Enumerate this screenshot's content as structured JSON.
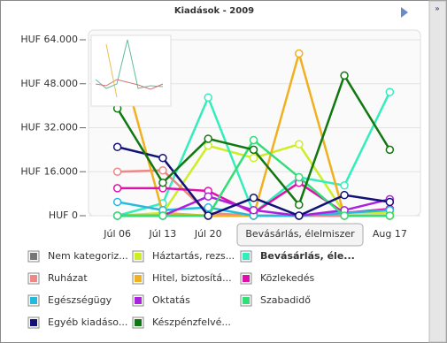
{
  "chart_data": {
    "type": "line",
    "title": "Kiadások - 2009",
    "categories": [
      "Júl 06",
      "Júl 13",
      "Júl 20",
      null,
      null,
      null,
      "Aug 17"
    ],
    "ylim": [
      0,
      64000
    ],
    "yticks": [
      {
        "value": 0,
        "label": "HUF 0"
      },
      {
        "value": 16000,
        "label": "HUF 16.000"
      },
      {
        "value": 32000,
        "label": "HUF 32.000"
      },
      {
        "value": 48000,
        "label": "HUF 48.000"
      },
      {
        "value": 64000,
        "label": "HUF 64.000"
      }
    ],
    "grid": true,
    "tooltip": "Bevásárlás, élelmiszer",
    "series": [
      {
        "name": "Nem kategoriz...",
        "color": "#777777",
        "values": [
          0,
          0,
          0,
          0,
          0,
          0,
          0
        ]
      },
      {
        "name": "Háztartás, rezs...",
        "color": "#ccee22",
        "values": [
          0,
          1000,
          25500,
          21000,
          26000,
          1000,
          1000
        ]
      },
      {
        "name": "Bevásárlás, éle...",
        "color": "#33eebb",
        "values": [
          0,
          4500,
          43000,
          1000,
          14000,
          11000,
          45000
        ]
      },
      {
        "name": "Ruházat",
        "color": "#ee8888",
        "values": [
          16000,
          16500,
          1000,
          0,
          0,
          0,
          0
        ]
      },
      {
        "name": "Hitel, biztosítá...",
        "color": "#f0b020",
        "values": [
          61000,
          1000,
          0,
          0,
          59000,
          0,
          0
        ]
      },
      {
        "name": "Közlekedés",
        "color": "#dd11aa",
        "values": [
          10000,
          10000,
          9000,
          1000,
          12000,
          1000,
          2500
        ]
      },
      {
        "name": "Egészségügy",
        "color": "#22bbdd",
        "values": [
          5000,
          2000,
          3000,
          0,
          0,
          1000,
          2000
        ]
      },
      {
        "name": "Oktatás",
        "color": "#aa22dd",
        "values": [
          0,
          0,
          7000,
          2000,
          0,
          2000,
          6000
        ]
      },
      {
        "name": "Szabadidő",
        "color": "#33dd77",
        "values": [
          0,
          0,
          0,
          27500,
          14000,
          0,
          0
        ]
      },
      {
        "name": "Egyéb kiadáso...",
        "color": "#111177",
        "values": [
          25000,
          21000,
          0,
          6500,
          0,
          7500,
          5000
        ]
      },
      {
        "name": "Készpénzfelvé...",
        "color": "#117711",
        "values": [
          39000,
          12000,
          28000,
          24000,
          4000,
          51000,
          24000
        ]
      }
    ]
  }
}
